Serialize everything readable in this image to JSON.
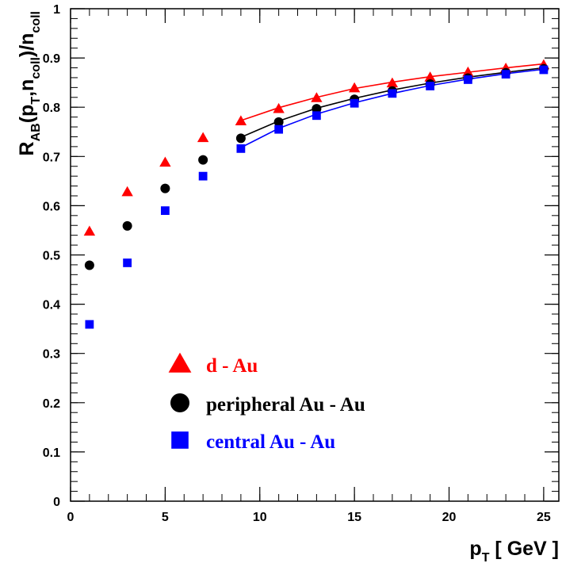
{
  "chart_data": {
    "type": "scatter",
    "title": "",
    "xlabel": {
      "main": "p",
      "sub": "T",
      "rest": " [ GeV ]"
    },
    "ylabel": {
      "parts": [
        {
          "t": "R",
          "sub": false
        },
        {
          "t": "AB",
          "sub": true
        },
        {
          "t": "(p",
          "sub": false
        },
        {
          "t": "T",
          "sub": true
        },
        {
          "t": ",n",
          "sub": false
        },
        {
          "t": "coll",
          "sub": true
        },
        {
          "t": ")/n",
          "sub": false
        },
        {
          "t": "coll",
          "sub": true
        }
      ]
    },
    "xlim": [
      0,
      25.8
    ],
    "ylim": [
      0,
      1
    ],
    "xticks": [
      0,
      5,
      10,
      15,
      20,
      25
    ],
    "xtick_labels": [
      "0",
      "5",
      "10",
      "15",
      "20",
      "25"
    ],
    "yticks": [
      0,
      0.1,
      0.2,
      0.3,
      0.4,
      0.5,
      0.6,
      0.7,
      0.8,
      0.9,
      1
    ],
    "ytick_labels": [
      "0",
      "0.1",
      "0.2",
      "0.3",
      "0.4",
      "0.5",
      "0.6",
      "0.7",
      "0.8",
      "0.9",
      "1"
    ],
    "grid": false,
    "legend_position": "bottom-center",
    "series": [
      {
        "name": "d - Au",
        "marker": "triangle",
        "color": "#ff0000",
        "x": [
          1,
          3,
          5,
          7,
          9,
          11,
          13,
          15,
          17,
          19,
          21,
          23,
          25
        ],
        "y": [
          0.548,
          0.628,
          0.688,
          0.738,
          0.772,
          0.797,
          0.819,
          0.839,
          0.849,
          0.861,
          0.871,
          0.879,
          0.886
        ],
        "curve_x": [
          9,
          11,
          13,
          15,
          17,
          19,
          21,
          23,
          25
        ],
        "curve_y": [
          0.773,
          0.799,
          0.82,
          0.838,
          0.851,
          0.862,
          0.871,
          0.88,
          0.888
        ]
      },
      {
        "name": "peripheral Au - Au",
        "marker": "circle",
        "color": "#000000",
        "x": [
          1,
          3,
          5,
          7,
          9,
          11,
          13,
          15,
          17,
          19,
          21,
          23,
          25
        ],
        "y": [
          0.479,
          0.559,
          0.635,
          0.693,
          0.737,
          0.77,
          0.797,
          0.816,
          0.833,
          0.847,
          0.859,
          0.87,
          0.878
        ],
        "curve_x": [
          9,
          11,
          13,
          15,
          17,
          19,
          21,
          23,
          25
        ],
        "curve_y": [
          0.739,
          0.772,
          0.798,
          0.818,
          0.835,
          0.849,
          0.861,
          0.871,
          0.88
        ]
      },
      {
        "name": "central Au - Au",
        "marker": "square",
        "color": "#0000ff",
        "x": [
          1,
          3,
          5,
          7,
          9,
          11,
          13,
          15,
          17,
          19,
          21,
          23,
          25
        ],
        "y": [
          0.359,
          0.484,
          0.59,
          0.66,
          0.716,
          0.755,
          0.783,
          0.808,
          0.828,
          0.843,
          0.856,
          0.867,
          0.876
        ],
        "curve_x": [
          9,
          11,
          13,
          15,
          17,
          19,
          21,
          23,
          25
        ],
        "curve_y": [
          0.718,
          0.757,
          0.786,
          0.809,
          0.828,
          0.844,
          0.857,
          0.868,
          0.877
        ]
      }
    ]
  }
}
